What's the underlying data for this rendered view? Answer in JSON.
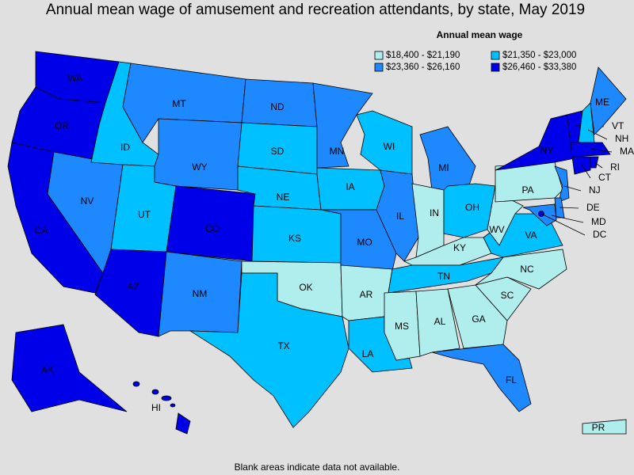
{
  "title": "Annual mean wage of amusement and recreation attendants, by state, May 2019",
  "legend": {
    "title": "Annual mean wage",
    "items": [
      {
        "label": "$18,400 - $21,190",
        "color": "#b0eeee"
      },
      {
        "label": "$21,350 - $23,000",
        "color": "#00c0ff"
      },
      {
        "label": "$23,360 - $26,160",
        "color": "#1e88ff"
      },
      {
        "label": "$26,460 - $33,380",
        "color": "#0000e8"
      }
    ]
  },
  "states": [
    {
      "label": "WA",
      "color": "#0000e8"
    },
    {
      "label": "OR",
      "color": "#0000e8"
    },
    {
      "label": "CA",
      "color": "#0000e8"
    },
    {
      "label": "NV",
      "color": "#1e88ff"
    },
    {
      "label": "ID",
      "color": "#00c0ff"
    },
    {
      "label": "MT",
      "color": "#1e88ff"
    },
    {
      "label": "WY",
      "color": "#1e88ff"
    },
    {
      "label": "UT",
      "color": "#00c0ff"
    },
    {
      "label": "CO",
      "color": "#0000e8"
    },
    {
      "label": "AZ",
      "color": "#0000e8"
    },
    {
      "label": "NM",
      "color": "#1e88ff"
    },
    {
      "label": "ND",
      "color": "#1e88ff"
    },
    {
      "label": "SD",
      "color": "#00c0ff"
    },
    {
      "label": "NE",
      "color": "#00c0ff"
    },
    {
      "label": "KS",
      "color": "#00c0ff"
    },
    {
      "label": "OK",
      "color": "#b0eeee"
    },
    {
      "label": "TX",
      "color": "#00c0ff"
    },
    {
      "label": "MN",
      "color": "#1e88ff"
    },
    {
      "label": "IA",
      "color": "#00c0ff"
    },
    {
      "label": "MO",
      "color": "#1e88ff"
    },
    {
      "label": "AR",
      "color": "#b0eeee"
    },
    {
      "label": "LA",
      "color": "#00c0ff"
    },
    {
      "label": "WI",
      "color": "#00c0ff"
    },
    {
      "label": "IL",
      "color": "#1e88ff"
    },
    {
      "label": "MI",
      "color": "#1e88ff"
    },
    {
      "label": "IN",
      "color": "#b0eeee"
    },
    {
      "label": "OH",
      "color": "#00c0ff"
    },
    {
      "label": "KY",
      "color": "#b0eeee"
    },
    {
      "label": "TN",
      "color": "#00c0ff"
    },
    {
      "label": "MS",
      "color": "#b0eeee"
    },
    {
      "label": "AL",
      "color": "#b0eeee"
    },
    {
      "label": "GA",
      "color": "#b0eeee"
    },
    {
      "label": "FL",
      "color": "#1e88ff"
    },
    {
      "label": "SC",
      "color": "#b0eeee"
    },
    {
      "label": "NC",
      "color": "#b0eeee"
    },
    {
      "label": "VA",
      "color": "#00c0ff"
    },
    {
      "label": "WV",
      "color": "#b0eeee"
    },
    {
      "label": "PA",
      "color": "#b0eeee"
    },
    {
      "label": "NY",
      "color": "#0000e8"
    },
    {
      "label": "VT",
      "color": "#0000e8"
    },
    {
      "label": "NH",
      "color": "#00c0ff"
    },
    {
      "label": "ME",
      "color": "#1e88ff"
    },
    {
      "label": "MA",
      "color": "#0000e8"
    },
    {
      "label": "CT",
      "color": "#0000e8"
    },
    {
      "label": "RI",
      "color": "#0000e8"
    },
    {
      "label": "NJ",
      "color": "#1e88ff"
    },
    {
      "label": "DE",
      "color": "#1e88ff"
    },
    {
      "label": "MD",
      "color": "#1e88ff"
    },
    {
      "label": "DC",
      "color": "#0000e8"
    },
    {
      "label": "AK",
      "color": "#0000e8"
    },
    {
      "label": "HI",
      "color": "#0000e8"
    },
    {
      "label": "PR",
      "color": "#b0eeee"
    }
  ],
  "note": "Blank areas indicate data not available."
}
